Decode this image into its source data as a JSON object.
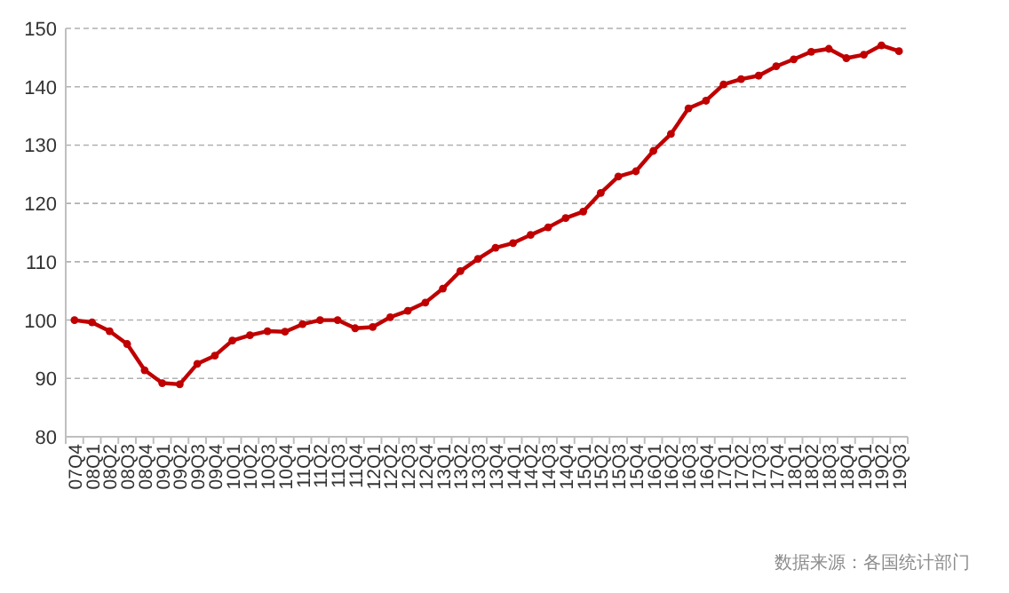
{
  "chart_data": {
    "type": "line",
    "categories": [
      "07Q4",
      "08Q1",
      "08Q2",
      "08Q3",
      "08Q4",
      "09Q1",
      "09Q2",
      "09Q3",
      "09Q4",
      "10Q1",
      "10Q2",
      "10Q3",
      "10Q4",
      "11Q1",
      "11Q2",
      "11Q3",
      "11Q4",
      "12Q1",
      "12Q2",
      "12Q3",
      "12Q4",
      "13Q1",
      "13Q2",
      "13Q3",
      "13Q4",
      "14Q1",
      "14Q2",
      "14Q3",
      "14Q4",
      "15Q1",
      "15Q2",
      "15Q3",
      "15Q4",
      "16Q1",
      "16Q2",
      "16Q3",
      "16Q4",
      "17Q1",
      "17Q2",
      "17Q3",
      "17Q4",
      "18Q1",
      "18Q2",
      "18Q3",
      "18Q4",
      "19Q1",
      "19Q2",
      "19Q3"
    ],
    "series": [
      {
        "color": "#c00000",
        "values": [
          100,
          99.6,
          98.1,
          95.9,
          91.4,
          89.2,
          89.0,
          92.5,
          93.9,
          96.5,
          97.4,
          98.1,
          98.0,
          99.3,
          100.0,
          100.0,
          98.6,
          98.8,
          100.5,
          101.6,
          103.0,
          105.4,
          108.4,
          110.5,
          112.4,
          113.2,
          114.6,
          115.9,
          117.5,
          118.6,
          121.8,
          124.6,
          125.5,
          129.0,
          131.9,
          136.3,
          137.6,
          140.4,
          141.3,
          141.9,
          143.5,
          144.7,
          146.0,
          146.5,
          144.9,
          145.5,
          147.1,
          146.1
        ]
      }
    ],
    "ylim": [
      80,
      150
    ],
    "yticks": [
      80,
      90,
      100,
      110,
      120,
      130,
      140,
      150
    ],
    "grid": "y",
    "marker": "circle",
    "line_style": "solid",
    "annotations": [
      "数据来源：各国统计部门"
    ]
  }
}
